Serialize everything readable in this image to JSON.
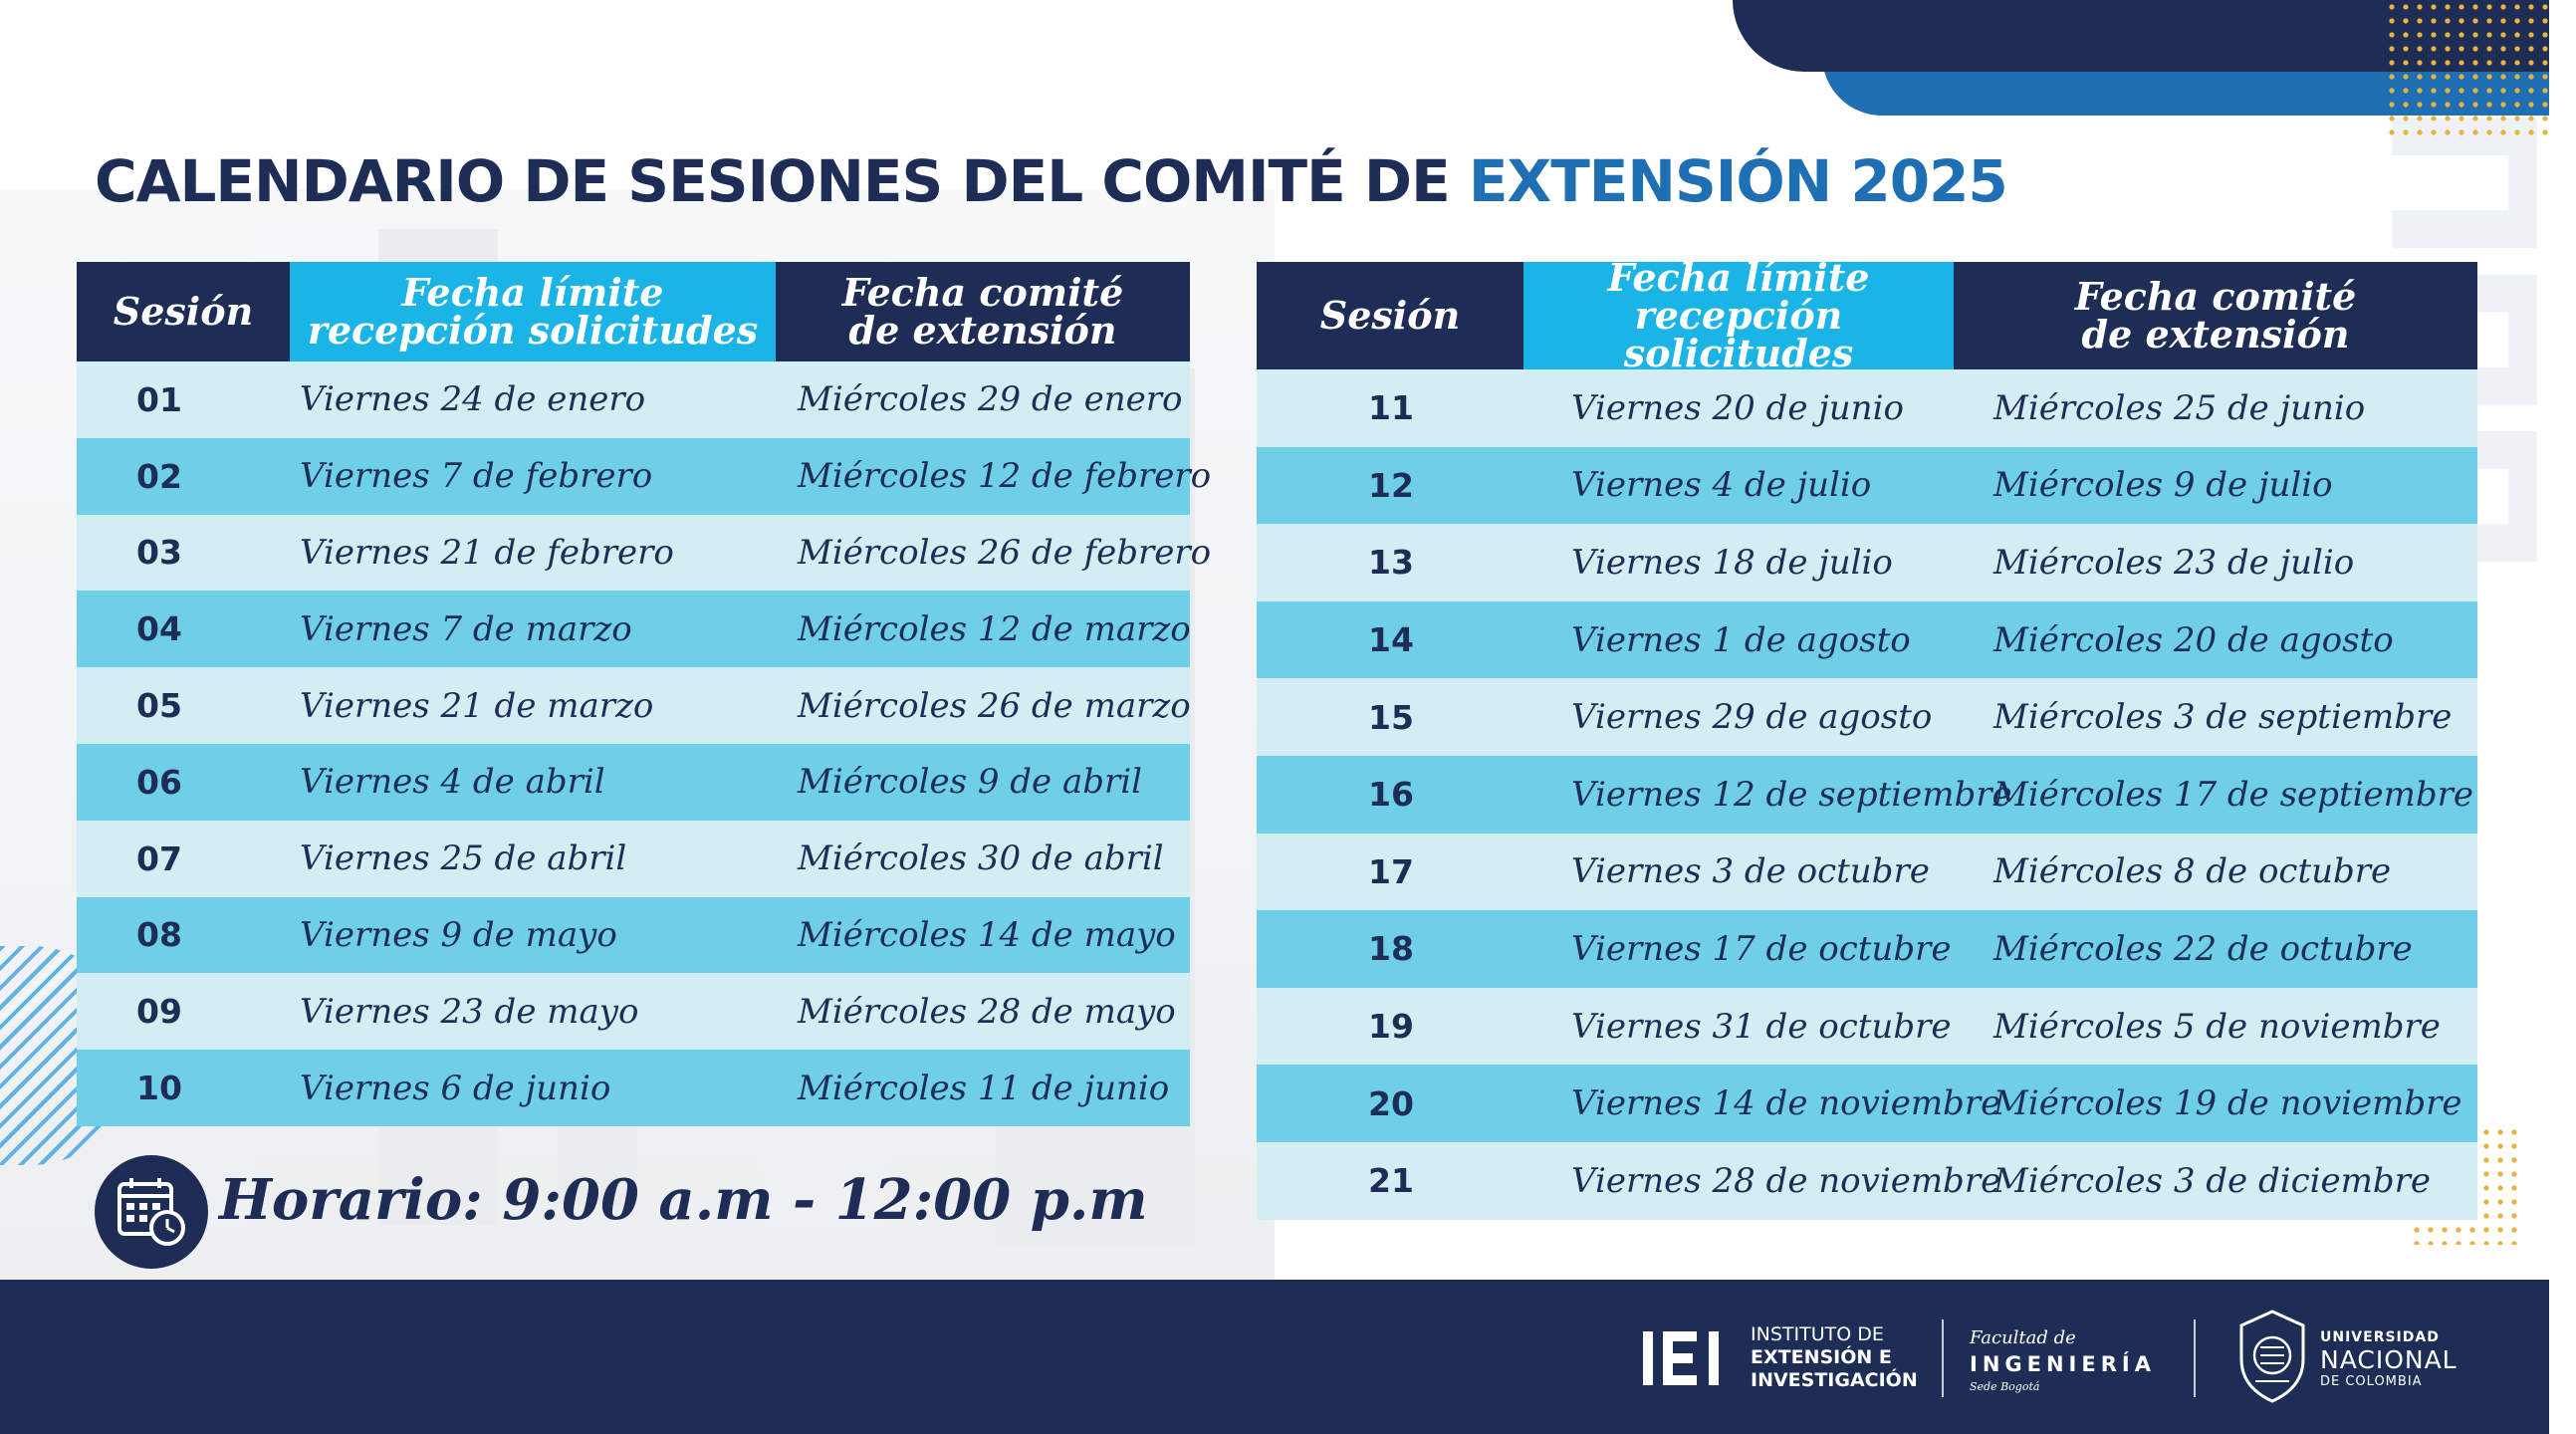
{
  "title": {
    "main": "CALENDARIO DE SESIONES DEL COMITÉ DE",
    "accent": "EXTENSIÓN 2025"
  },
  "headers": {
    "session": "Sesión",
    "deadline_l1": "Fecha límite",
    "deadline_l2": "recepción solicitudes",
    "committee_l1": "Fecha comité",
    "committee_l2": "de extensión"
  },
  "left_table": [
    {
      "num": "01",
      "deadline": "Viernes 24 de enero",
      "committee": "Miércoles 29 de enero"
    },
    {
      "num": "02",
      "deadline": "Viernes 7 de febrero",
      "committee": "Miércoles 12 de febrero"
    },
    {
      "num": "03",
      "deadline": "Viernes 21 de febrero",
      "committee": "Miércoles 26 de febrero"
    },
    {
      "num": "04",
      "deadline": "Viernes 7 de marzo",
      "committee": "Miércoles 12 de marzo"
    },
    {
      "num": "05",
      "deadline": "Viernes 21 de marzo",
      "committee": "Miércoles 26 de marzo"
    },
    {
      "num": "06",
      "deadline": "Viernes 4 de abril",
      "committee": "Miércoles 9 de abril"
    },
    {
      "num": "07",
      "deadline": "Viernes 25 de abril",
      "committee": "Miércoles 30 de abril"
    },
    {
      "num": "08",
      "deadline": "Viernes 9 de mayo",
      "committee": "Miércoles 14 de mayo"
    },
    {
      "num": "09",
      "deadline": "Viernes 23 de mayo",
      "committee": "Miércoles 28 de mayo"
    },
    {
      "num": "10",
      "deadline": "Viernes 6 de junio",
      "committee": "Miércoles 11 de junio"
    }
  ],
  "right_table": [
    {
      "num": "11",
      "deadline": "Viernes 20 de junio",
      "committee": "Miércoles 25 de junio"
    },
    {
      "num": "12",
      "deadline": "Viernes 4 de julio",
      "committee": "Miércoles 9 de julio"
    },
    {
      "num": "13",
      "deadline": "Viernes 18 de julio",
      "committee": "Miércoles 23 de julio"
    },
    {
      "num": "14",
      "deadline": "Viernes 1 de agosto",
      "committee": "Miércoles 20 de agosto"
    },
    {
      "num": "15",
      "deadline": "Viernes 29 de agosto",
      "committee": "Miércoles 3 de septiembre"
    },
    {
      "num": "16",
      "deadline": "Viernes 12 de septiembre",
      "committee": "Miércoles 17 de septiembre"
    },
    {
      "num": "17",
      "deadline": "Viernes 3 de octubre",
      "committee": "Miércoles 8 de octubre"
    },
    {
      "num": "18",
      "deadline": "Viernes 17 de octubre",
      "committee": "Miércoles 22 de octubre"
    },
    {
      "num": "19",
      "deadline": "Viernes 31 de octubre",
      "committee": "Miércoles 5 de noviembre"
    },
    {
      "num": "20",
      "deadline": "Viernes 14 de noviembre",
      "committee": "Miércoles 19 de noviembre"
    },
    {
      "num": "21",
      "deadline": "Viernes 28 de noviembre",
      "committee": "Miércoles 3 de diciembre"
    }
  ],
  "schedule": {
    "text": "Horario: 9:00 a.m - 12:00 p.m",
    "icon": "calendar-clock-icon"
  },
  "footer": {
    "iei_l1": "INSTITUTO DE",
    "iei_l2": "EXTENSIÓN E",
    "iei_l3": "INVESTIGACIÓN",
    "fac_l1": "Facultad de",
    "fac_l2": "INGENIERÍA",
    "fac_l3": "Sede Bogotá",
    "un_l1": "UNIVERSIDAD",
    "un_l2": "NACIONAL",
    "un_l3": "DE COLOMBIA"
  },
  "colors": {
    "navy": "#1d2d56",
    "blue": "#1f6fb5",
    "cyan": "#1ab4e6",
    "row_light": "#d3eef3",
    "row_mid": "#6fcfe8",
    "gold": "#e9b23a"
  }
}
